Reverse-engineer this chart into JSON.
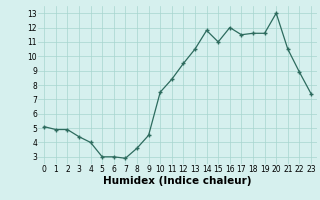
{
  "x": [
    0,
    1,
    2,
    3,
    4,
    5,
    6,
    7,
    8,
    9,
    10,
    11,
    12,
    13,
    14,
    15,
    16,
    17,
    18,
    19,
    20,
    21,
    22,
    23
  ],
  "y": [
    5.1,
    4.9,
    4.9,
    4.4,
    4.0,
    3.0,
    3.0,
    2.9,
    3.6,
    4.5,
    7.5,
    8.4,
    9.5,
    10.5,
    11.8,
    11.0,
    12.0,
    11.5,
    11.6,
    11.6,
    13.0,
    10.5,
    8.9,
    7.4
  ],
  "line_color": "#2d6b5e",
  "marker": "+",
  "marker_size": 3.5,
  "marker_linewidth": 1.0,
  "bg_color": "#d6f0ee",
  "grid_color": "#a8d5cf",
  "xlabel": "Humidex (Indice chaleur)",
  "ylim": [
    2.5,
    13.5
  ],
  "xlim": [
    -0.5,
    23.5
  ],
  "yticks": [
    3,
    4,
    5,
    6,
    7,
    8,
    9,
    10,
    11,
    12,
    13
  ],
  "xticks": [
    0,
    1,
    2,
    3,
    4,
    5,
    6,
    7,
    8,
    9,
    10,
    11,
    12,
    13,
    14,
    15,
    16,
    17,
    18,
    19,
    20,
    21,
    22,
    23
  ],
  "tick_fontsize": 5.5,
  "xlabel_fontsize": 7.5,
  "xlabel_fontweight": "bold",
  "linewidth": 0.9
}
